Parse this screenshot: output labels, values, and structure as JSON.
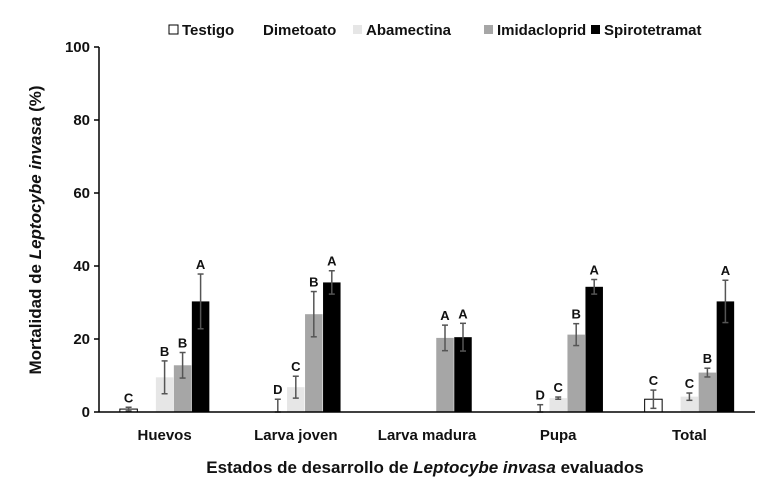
{
  "chart_data": {
    "type": "bar",
    "title": "",
    "xlabel_parts": [
      "Estados de desarrollo de ",
      "Leptocybe invasa",
      " evaluados"
    ],
    "ylabel_parts": [
      "Mortalidad de ",
      "Leptocybe invasa",
      " (%)"
    ],
    "ylim": [
      0,
      100
    ],
    "yticks": [
      "0",
      "20",
      "40",
      "60",
      "80",
      "100"
    ],
    "categories": [
      "Huevos",
      "Larva joven",
      "Larva madura",
      "Pupa",
      "Total"
    ],
    "legend_position": "top",
    "series": [
      {
        "name": "Testigo",
        "color": "#ffffff",
        "stroke": "#000000",
        "values": [
          0.8,
          0,
          0,
          0,
          3.5
        ],
        "errors": [
          0.5,
          0,
          0,
          0,
          2.5
        ],
        "letters": [
          "C",
          "",
          "",
          "",
          "C"
        ]
      },
      {
        "name": "Dimetoato",
        "color": "#ffffff",
        "stroke": "none",
        "values": [
          0,
          1.2,
          0,
          0.8,
          0
        ],
        "errors": [
          0,
          2.3,
          0,
          1.2,
          0
        ],
        "letters": [
          "",
          "D",
          "",
          "D",
          ""
        ]
      },
      {
        "name": "Abamectina",
        "color": "#e6e6e6",
        "stroke": "none",
        "values": [
          9.5,
          6.8,
          0,
          3.8,
          4.2
        ],
        "errors": [
          4.5,
          3.0,
          0,
          0.3,
          1.0
        ],
        "letters": [
          "B",
          "C",
          "",
          "C",
          "C"
        ]
      },
      {
        "name": "Imidacloprid",
        "color": "#a6a6a6",
        "stroke": "none",
        "values": [
          12.8,
          26.8,
          20.3,
          21.2,
          10.8
        ],
        "errors": [
          3.5,
          6.2,
          3.5,
          3.0,
          1.2
        ],
        "letters": [
          "B",
          "B",
          "A",
          "B",
          "B"
        ]
      },
      {
        "name": "Spirotetramat",
        "color": "#000000",
        "stroke": "none",
        "values": [
          30.3,
          35.5,
          20.5,
          34.3,
          30.3
        ],
        "errors": [
          7.5,
          3.2,
          3.8,
          2.0,
          5.8
        ],
        "letters": [
          "A",
          "A",
          "A",
          "A",
          "A"
        ]
      }
    ]
  }
}
